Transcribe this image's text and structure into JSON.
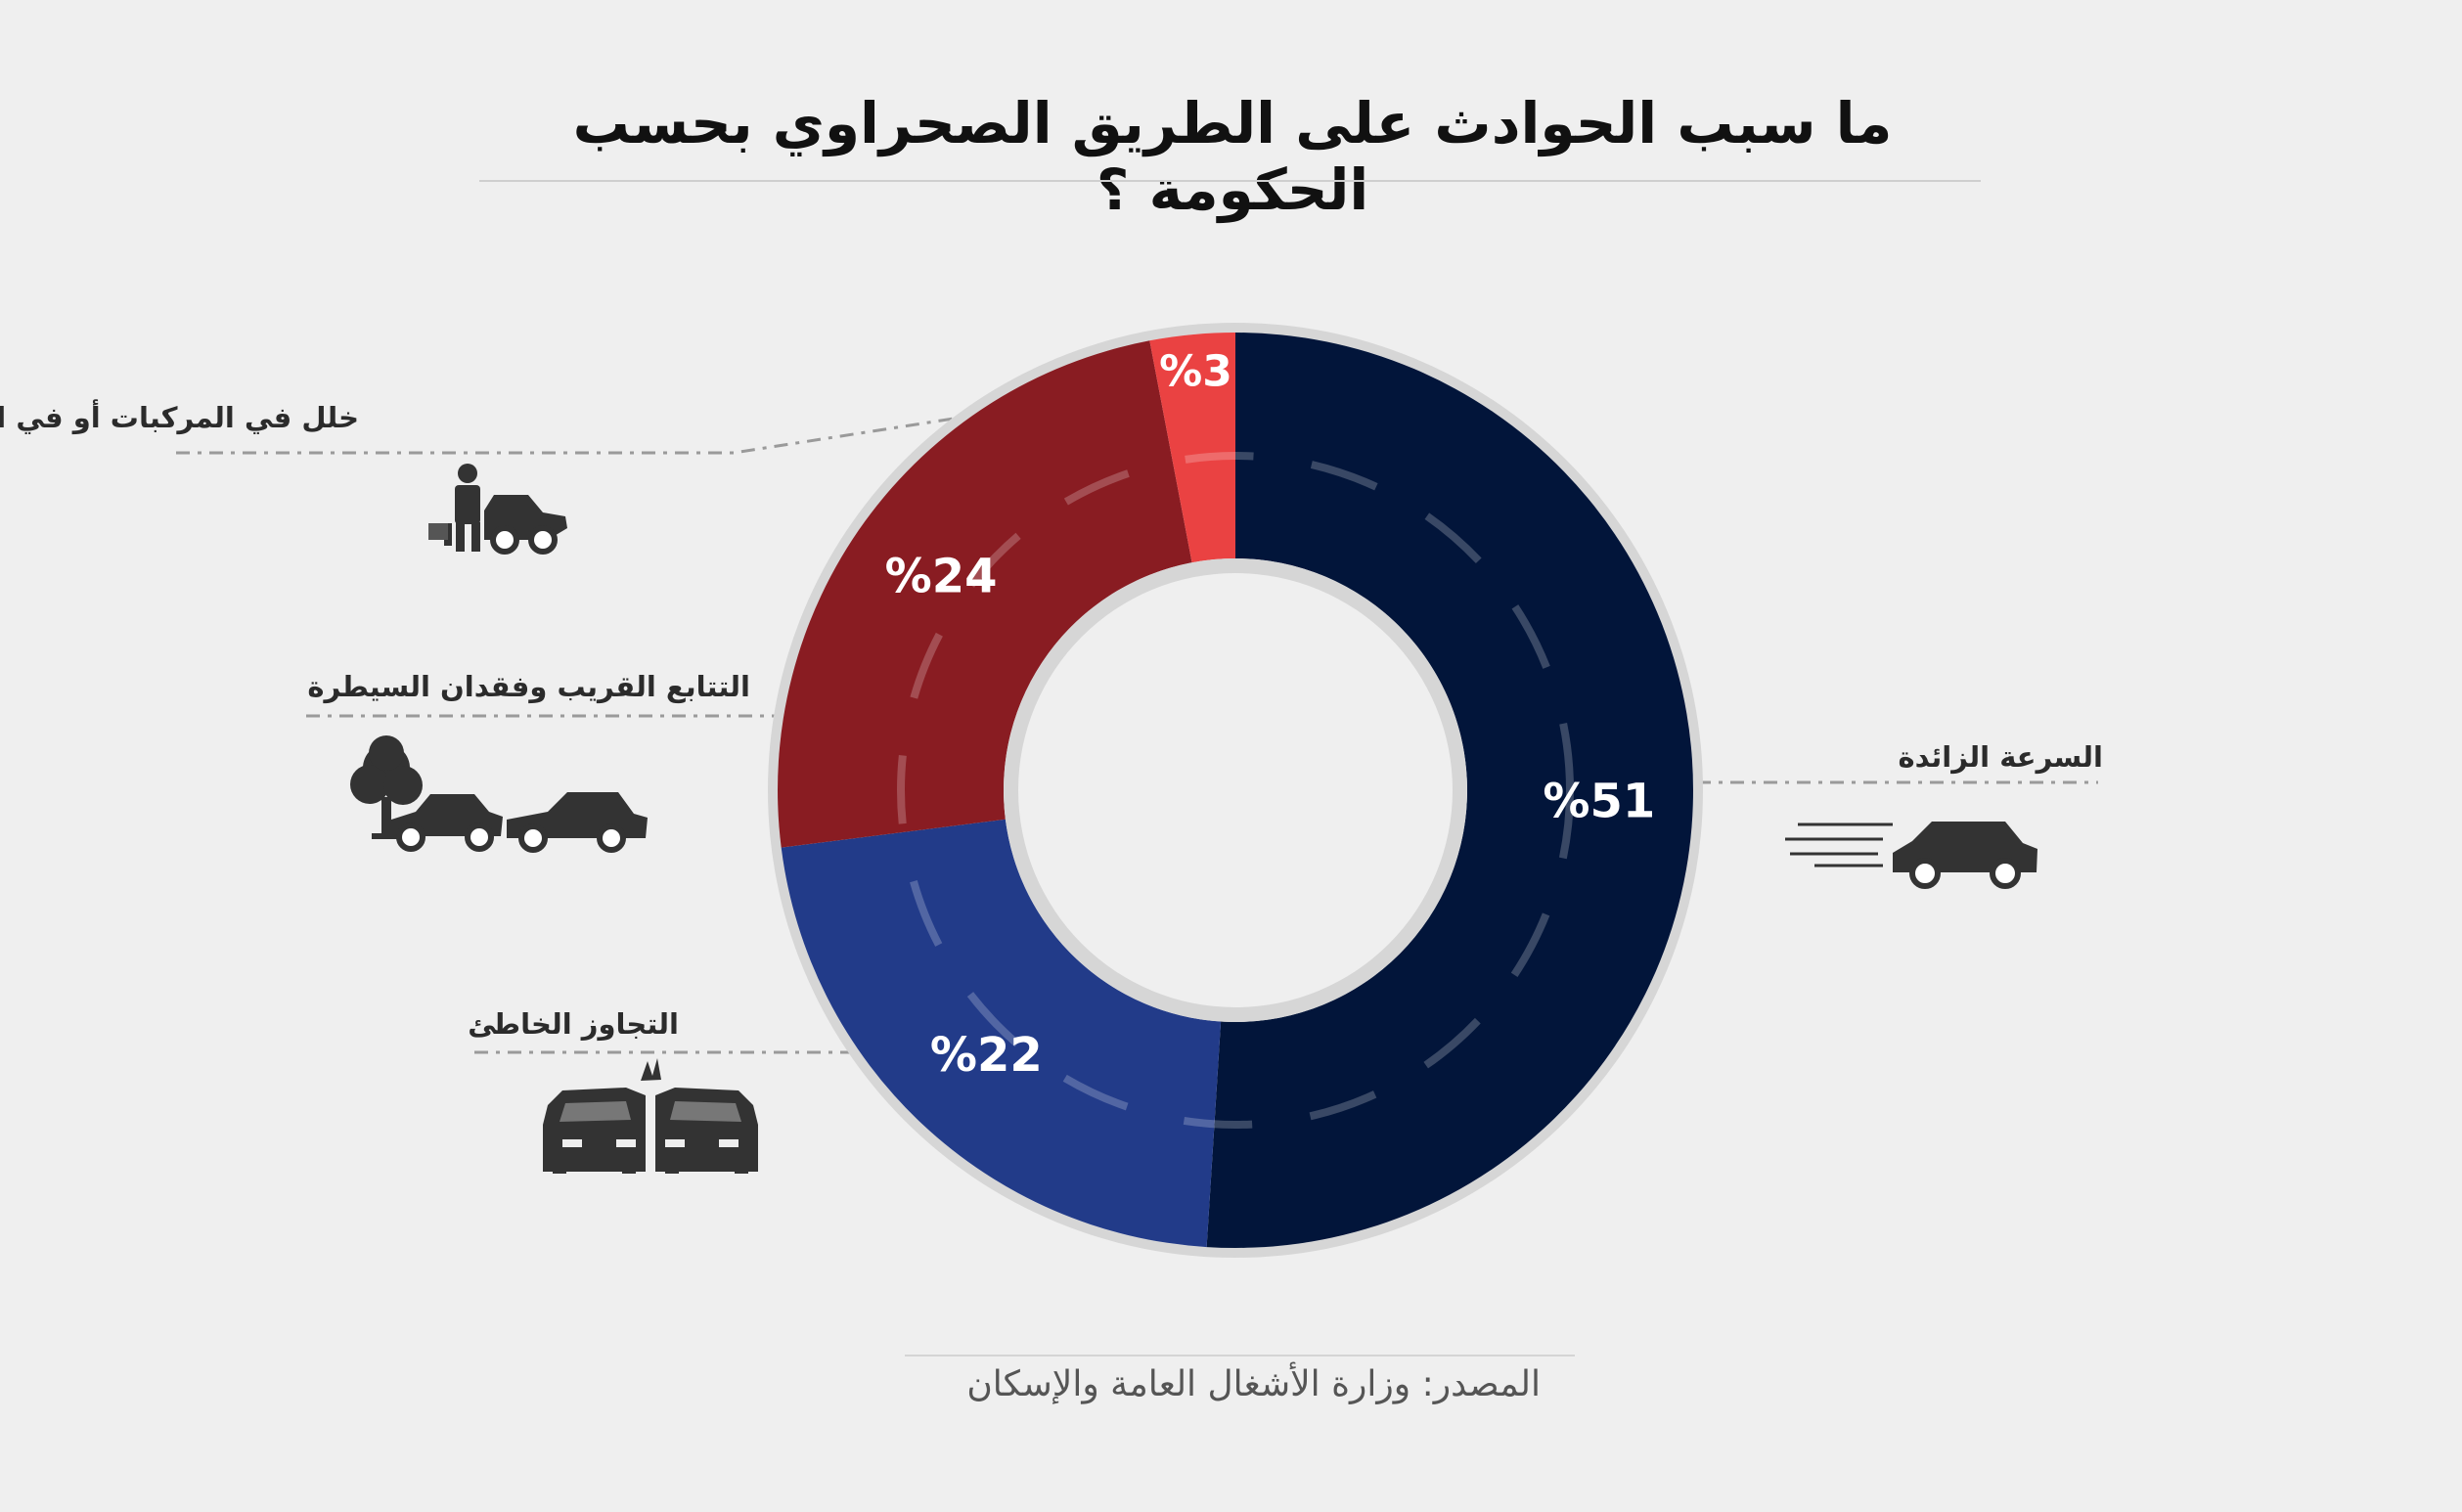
{
  "title": "ما سبب الحوادث على الطريق الصحراوي بحسب الحكومة ؟",
  "source": "المصدر: وزارة الأشغال العامة والإسكان",
  "colors": {
    "background": "#efefef",
    "speed": "#02153a",
    "overtaking": "#223b89",
    "tailgating": "#891c22",
    "defects": "#ea4242",
    "ring": "#d6d6d6"
  },
  "chart_data": {
    "type": "pie",
    "title": "ما سبب الحوادث على الطريق الصحراوي بحسب الحكومة ؟",
    "unit": "%",
    "categories": [
      "السرعة الزائدة",
      "التجاوز الخاطئ",
      "التتابع القريب وفقدان السيطرة",
      "خلل في المركبات أو في الطريق"
    ],
    "values": [
      51,
      22,
      24,
      3
    ],
    "value_labels": [
      "%51",
      "%22",
      "%24",
      "%3"
    ],
    "icons": [
      "speeding-car-icon",
      "head-on-collision-icon",
      "rear-end-collision-icon",
      "mechanic-car-icon"
    ]
  }
}
